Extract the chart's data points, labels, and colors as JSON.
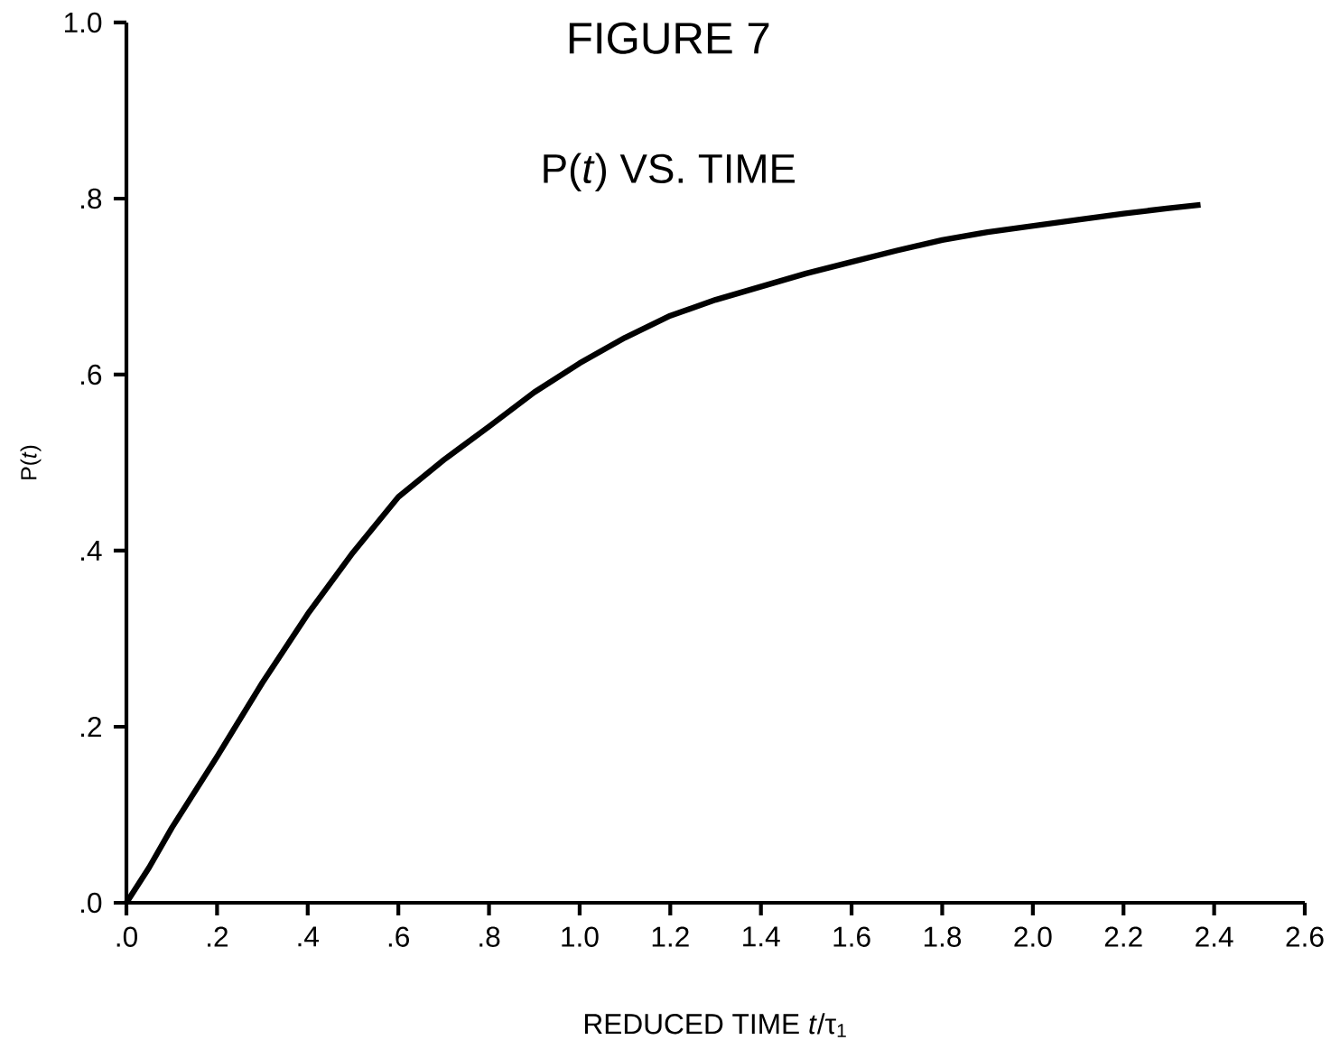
{
  "chart_data": {
    "type": "line",
    "title": "FIGURE 7",
    "subtitle": "P(*t*) VS. TIME",
    "xlabel": "REDUCED TIME *t*/τ$_{1}$",
    "ylabel": "P(*t*)",
    "x": [
      0,
      0.05,
      0.1,
      0.2,
      0.3,
      0.4,
      0.5,
      0.6,
      0.7,
      0.8,
      0.9,
      1.0,
      1.1,
      1.2,
      1.3,
      1.4,
      1.5,
      1.6,
      1.7,
      1.8,
      1.9,
      2.0,
      2.1,
      2.2,
      2.3,
      2.37
    ],
    "series": [
      {
        "color": "#000000",
        "values": [
          0,
          0.04,
          0.085,
          0.166,
          0.25,
          0.328,
          0.398,
          0.461,
          0.503,
          0.541,
          0.58,
          0.613,
          0.642,
          0.667,
          0.685,
          0.7,
          0.715,
          0.728,
          0.741,
          0.753,
          0.762,
          0.769,
          0.776,
          0.783,
          0.789,
          0.793
        ]
      }
    ],
    "xlim": [
      0,
      2.6
    ],
    "ylim": [
      0,
      1.0
    ],
    "xticks": [
      {
        "value": 0,
        "label": ".0"
      },
      {
        "value": 0.2,
        "label": ".2"
      },
      {
        "value": 0.4,
        "label": ".4"
      },
      {
        "value": 0.6,
        "label": ".6"
      },
      {
        "value": 0.8,
        "label": ".8"
      },
      {
        "value": 1.0,
        "label": "1.0"
      },
      {
        "value": 1.2,
        "label": "1.2"
      },
      {
        "value": 1.4,
        "label": "1.4"
      },
      {
        "value": 1.6,
        "label": "1.6"
      },
      {
        "value": 1.8,
        "label": "1.8"
      },
      {
        "value": 2.0,
        "label": "2.0"
      },
      {
        "value": 2.2,
        "label": "2.2"
      },
      {
        "value": 2.4,
        "label": "2.4"
      },
      {
        "value": 2.6,
        "label": "2.6"
      }
    ],
    "yticks": [
      {
        "value": 0,
        "label": ".0"
      },
      {
        "value": 0.2,
        "label": ".2"
      },
      {
        "value": 0.4,
        "label": ".4"
      },
      {
        "value": 0.6,
        "label": ".6"
      },
      {
        "value": 0.8,
        "label": ".8"
      },
      {
        "value": 1.0,
        "label": "1.0"
      }
    ],
    "grid": false,
    "marker": "none",
    "line_style": "solid"
  }
}
